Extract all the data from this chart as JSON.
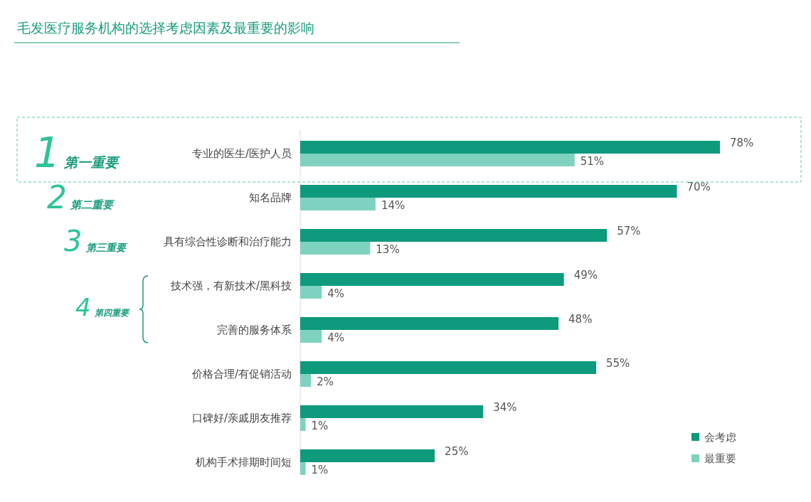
{
  "chart_data": {
    "type": "bar",
    "orientation": "horizontal",
    "title": "毛发医疗服务机构的选择考虑因素及最重要的影响",
    "categories": [
      "专业的医生/医护人员",
      "知名品牌",
      "具有综合性诊断和治疗能力",
      "技术强，有新技术/黑科技",
      "完善的服务体系",
      "价格合理/有促销活动",
      "口碑好/亲戚朋友推荐",
      "机构手术排期时间短"
    ],
    "series": [
      {
        "name": "会考虑",
        "color": "#0e9a7c",
        "values": [
          78,
          70,
          57,
          49,
          48,
          55,
          34,
          25
        ],
        "value_labels": [
          "78%",
          "70%",
          "57%",
          "49%",
          "48%",
          "55%",
          "34%",
          "25%"
        ]
      },
      {
        "name": "最重要",
        "color": "#80d2c0",
        "values": [
          51,
          14,
          13,
          4,
          4,
          2,
          1,
          1
        ],
        "value_labels": [
          "51%",
          "14%",
          "13%",
          "4%",
          "4%",
          "2%",
          "1%",
          "1%"
        ]
      }
    ],
    "legend": "bottom right",
    "annotations": [
      "1",
      "第一重要",
      "2",
      "第二重要",
      "3",
      "第三重要",
      "4",
      "第四重要"
    ]
  }
}
